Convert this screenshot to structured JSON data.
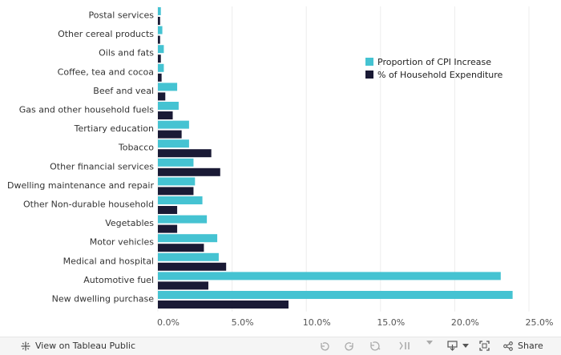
{
  "chart_data": {
    "type": "bar",
    "orientation": "horizontal",
    "categories": [
      "Postal services",
      "Other cereal products",
      "Oils and fats",
      "Coffee, tea and cocoa",
      "Beef and veal",
      "Gas and other household fuels",
      "Tertiary education",
      "Tobacco",
      "Other financial services",
      "Dwelling maintenance and repair",
      "Other Non-durable household",
      "Vegetables",
      "Motor vehicles",
      "Medical and hospital",
      "Automotive fuel",
      "New dwelling purchase"
    ],
    "series": [
      {
        "name": "Proportion of CPI Increase",
        "color": "#45c3d2",
        "values": [
          0.2,
          0.3,
          0.4,
          0.4,
          1.3,
          1.4,
          2.1,
          2.1,
          2.4,
          2.5,
          3.0,
          3.3,
          4.0,
          4.1,
          23.1,
          23.9
        ]
      },
      {
        "name": "% of Household Expenditure",
        "color": "#1a1a35",
        "values": [
          0.15,
          0.15,
          0.2,
          0.25,
          0.5,
          1.0,
          1.6,
          3.6,
          4.2,
          2.4,
          1.3,
          1.3,
          3.1,
          4.6,
          3.4,
          8.8
        ]
      }
    ],
    "xlim": [
      0,
      25
    ],
    "xticks": [
      "0.0%",
      "5.0%",
      "10.0%",
      "15.0%",
      "20.0%",
      "25.0%"
    ],
    "xtick_values": [
      0,
      5,
      10,
      15,
      20,
      25
    ],
    "grid": "vertical",
    "legend_placement": "top-right"
  },
  "toolbar": {
    "view_label": "View on Tableau Public",
    "share_label": "Share",
    "icons": [
      "tableau-logo-icon",
      "undo-icon",
      "redo-icon",
      "revert-icon",
      "pause-icon",
      "download-icon",
      "fullscreen-icon",
      "share-icon"
    ]
  }
}
